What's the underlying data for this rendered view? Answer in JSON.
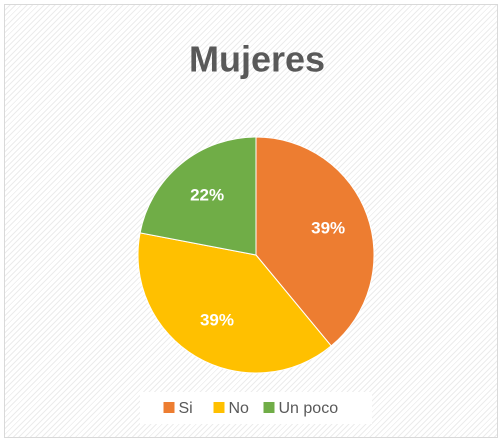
{
  "chart_data": {
    "type": "pie",
    "title": "Mujeres",
    "categories": [
      "Si",
      "No",
      "Un poco"
    ],
    "values": [
      39,
      39,
      22
    ],
    "value_labels": [
      "39%",
      "39%",
      "22%"
    ],
    "colors": [
      "#ed7d31",
      "#ffc000",
      "#70ad47"
    ],
    "legend": "bottom"
  }
}
